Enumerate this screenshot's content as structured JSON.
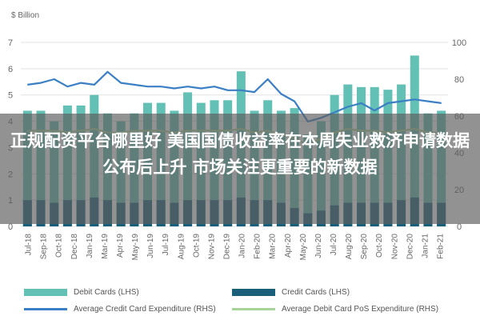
{
  "chart_data": {
    "type": "bar+line",
    "unit_label": "$ Billion",
    "categories": [
      "Jul-18",
      "Aug-18",
      "Sep-18",
      "Oct-18",
      "Nov-18",
      "Dec-18",
      "Jan-19",
      "Feb-19",
      "Mar-19",
      "Apr-19",
      "May-19",
      "Jun-19",
      "Jul-19",
      "Aug-19",
      "Sep-19",
      "Oct-19",
      "Nov-19",
      "Dec-19",
      "Jan-20",
      "Feb-20",
      "Mar-20",
      "Apr-20",
      "May-20",
      "Jun-20",
      "Jul-20",
      "Aug-20",
      "Sep-20",
      "Oct-20",
      "Nov-20",
      "Dec-20",
      "Jan-21",
      "Feb-21"
    ],
    "x_tick_labels": [
      "Jul-18",
      "Sep-18",
      "Oct-18",
      "Dec-18",
      "Jan-19",
      "Mar-19",
      "Apr-19",
      "May-19",
      "Jun-19",
      "Jul-19",
      "Aug-19",
      "Oct-19",
      "Nov-19",
      "Dec-19",
      "Jan-20",
      "Feb-20",
      "Mar-20",
      "Apr-20",
      "May-20",
      "Jun-20",
      "Jul-20",
      "Aug-20",
      "Sep-20",
      "Oct-20",
      "Nov-20",
      "Dec-20",
      "Jan-21",
      "Feb-21"
    ],
    "left_axis": {
      "min": 0,
      "max": 7,
      "ticks": [
        0,
        1,
        2,
        3,
        4,
        5,
        6,
        7
      ]
    },
    "right_axis": {
      "min": 0,
      "max": 100,
      "ticks": [
        0,
        20,
        40,
        60,
        80,
        100
      ]
    },
    "series": [
      {
        "name": "Debit Cards (LHS)",
        "kind": "bar",
        "axis": "left",
        "color": "#62c0b4",
        "values": [
          4.4,
          4.4,
          4.0,
          4.6,
          4.6,
          5.0,
          4.3,
          4.0,
          4.3,
          4.7,
          4.7,
          4.4,
          5.1,
          4.7,
          4.8,
          4.8,
          5.9,
          4.4,
          4.8,
          4.4,
          4.5,
          3.5,
          4.0,
          5.0,
          5.4,
          5.3,
          5.3,
          5.2,
          5.4,
          6.5,
          4.3,
          4.4
        ]
      },
      {
        "name": "Credit Cards (LHS)",
        "kind": "bar",
        "axis": "left",
        "color": "#1a5f7a",
        "values": [
          1.0,
          1.0,
          0.9,
          1.0,
          1.0,
          1.1,
          1.0,
          0.9,
          0.9,
          1.0,
          1.0,
          0.9,
          1.0,
          1.0,
          1.0,
          1.0,
          1.1,
          1.0,
          1.0,
          0.9,
          0.7,
          0.5,
          0.6,
          0.8,
          0.9,
          0.9,
          0.9,
          0.9,
          1.0,
          1.1,
          0.9,
          0.9
        ]
      },
      {
        "name": "Average Credit Card Expenditure (RHS)",
        "kind": "line",
        "axis": "right",
        "color": "#3b7fc4",
        "values": [
          77,
          78,
          80,
          76,
          78,
          77,
          84,
          78,
          77,
          76,
          76,
          75,
          76,
          75,
          76,
          74,
          74,
          73,
          80,
          72,
          68,
          57,
          59,
          62,
          65,
          67,
          63,
          67,
          68,
          69,
          68,
          67
        ]
      },
      {
        "name": "Average Debit Card PoS Expenditure (RHS)",
        "kind": "line",
        "axis": "right",
        "color": "#a8d49a",
        "values": [
          52,
          52,
          52,
          51,
          52,
          53,
          51,
          51,
          52,
          52,
          52,
          51,
          52,
          52,
          52,
          52,
          53,
          51,
          52,
          50,
          48,
          44,
          48,
          51,
          53,
          52,
          52,
          51,
          52,
          53,
          51,
          51
        ]
      }
    ]
  },
  "legend": {
    "items": [
      {
        "label": "Debit Cards (LHS)",
        "kind": "rect",
        "color": "#62c0b4"
      },
      {
        "label": "Credit Cards (LHS)",
        "kind": "rect",
        "color": "#1a5f7a"
      },
      {
        "label": "Average Credit Card Expenditure (RHS)",
        "kind": "line",
        "color": "#3b7fc4"
      },
      {
        "label": "Average Debit Card PoS Expenditure (RHS)",
        "kind": "line",
        "color": "#a8d49a"
      }
    ]
  },
  "overlay": {
    "headline": "正规配资平台哪里好 美国国债收益率在本周失业救济申请数据公布后上升 市场关注更重要的新数据"
  }
}
